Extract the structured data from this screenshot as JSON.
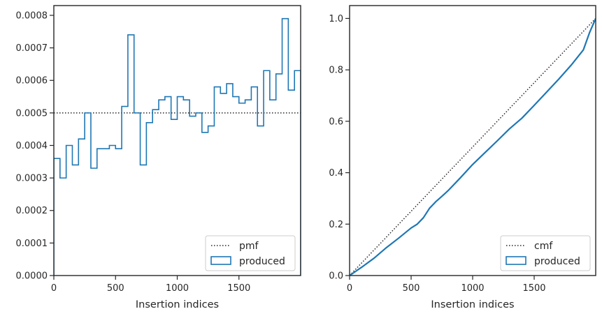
{
  "colors": {
    "produced": "#1f77b4",
    "reference": "#262626",
    "frame": "#262626"
  },
  "chart_data": [
    {
      "type": "step",
      "xlabel": "Insertion indices",
      "ylabel": "",
      "xlim": [
        0,
        2000
      ],
      "ylim": [
        0,
        0.00083
      ],
      "xticks": [
        0,
        500,
        1000,
        1500
      ],
      "yticks": [
        0.0,
        0.0001,
        0.0002,
        0.0003,
        0.0004,
        0.0005,
        0.0006,
        0.0007,
        0.0008
      ],
      "ytick_labels": [
        "0.0000",
        "0.0001",
        "0.0002",
        "0.0003",
        "0.0004",
        "0.0005",
        "0.0006",
        "0.0007",
        "0.0008"
      ],
      "legend_position": "lower-right",
      "series": [
        {
          "name": "pmf",
          "style": "dotted",
          "x": [
            0,
            2000
          ],
          "y": [
            0.0005,
            0.0005
          ]
        },
        {
          "name": "produced",
          "style": "step-histogram",
          "bin_width": 50,
          "bin_edges_start": 0,
          "values": [
            0.00036,
            0.0003,
            0.0004,
            0.00034,
            0.00042,
            0.0005,
            0.00033,
            0.00039,
            0.00039,
            0.0004,
            0.00039,
            0.00052,
            0.00074,
            0.0005,
            0.00034,
            0.00047,
            0.00051,
            0.00054,
            0.00055,
            0.00048,
            0.00055,
            0.00054,
            0.00049,
            0.0005,
            0.00044,
            0.00046,
            0.00058,
            0.00056,
            0.00059,
            0.00055,
            0.00053,
            0.00054,
            0.00058,
            0.00046,
            0.00063,
            0.00054,
            0.00062,
            0.00079,
            0.00057,
            0.00063
          ]
        }
      ]
    },
    {
      "type": "line",
      "xlabel": "Insertion indices",
      "ylabel": "",
      "xlim": [
        0,
        2000
      ],
      "ylim": [
        0,
        1.05
      ],
      "xticks": [
        0,
        500,
        1000,
        1500
      ],
      "yticks": [
        0.0,
        0.2,
        0.4,
        0.6,
        0.8,
        1.0
      ],
      "ytick_labels": [
        "0.0",
        "0.2",
        "0.4",
        "0.6",
        "0.8",
        "1.0"
      ],
      "legend_position": "lower-right",
      "series": [
        {
          "name": "cmf",
          "style": "dotted",
          "x": [
            0,
            2000
          ],
          "y": [
            0.0,
            1.0
          ]
        },
        {
          "name": "produced",
          "style": "line",
          "x": [
            0,
            100,
            200,
            300,
            400,
            500,
            550,
            600,
            650,
            700,
            750,
            800,
            900,
            1000,
            1100,
            1200,
            1300,
            1400,
            1500,
            1600,
            1700,
            1800,
            1900,
            1950,
            2000
          ],
          "y": [
            0.0,
            0.033,
            0.068,
            0.109,
            0.146,
            0.185,
            0.2,
            0.225,
            0.262,
            0.287,
            0.308,
            0.33,
            0.38,
            0.432,
            0.478,
            0.524,
            0.571,
            0.612,
            0.662,
            0.713,
            0.764,
            0.818,
            0.878,
            0.945,
            1.0
          ]
        }
      ]
    }
  ]
}
